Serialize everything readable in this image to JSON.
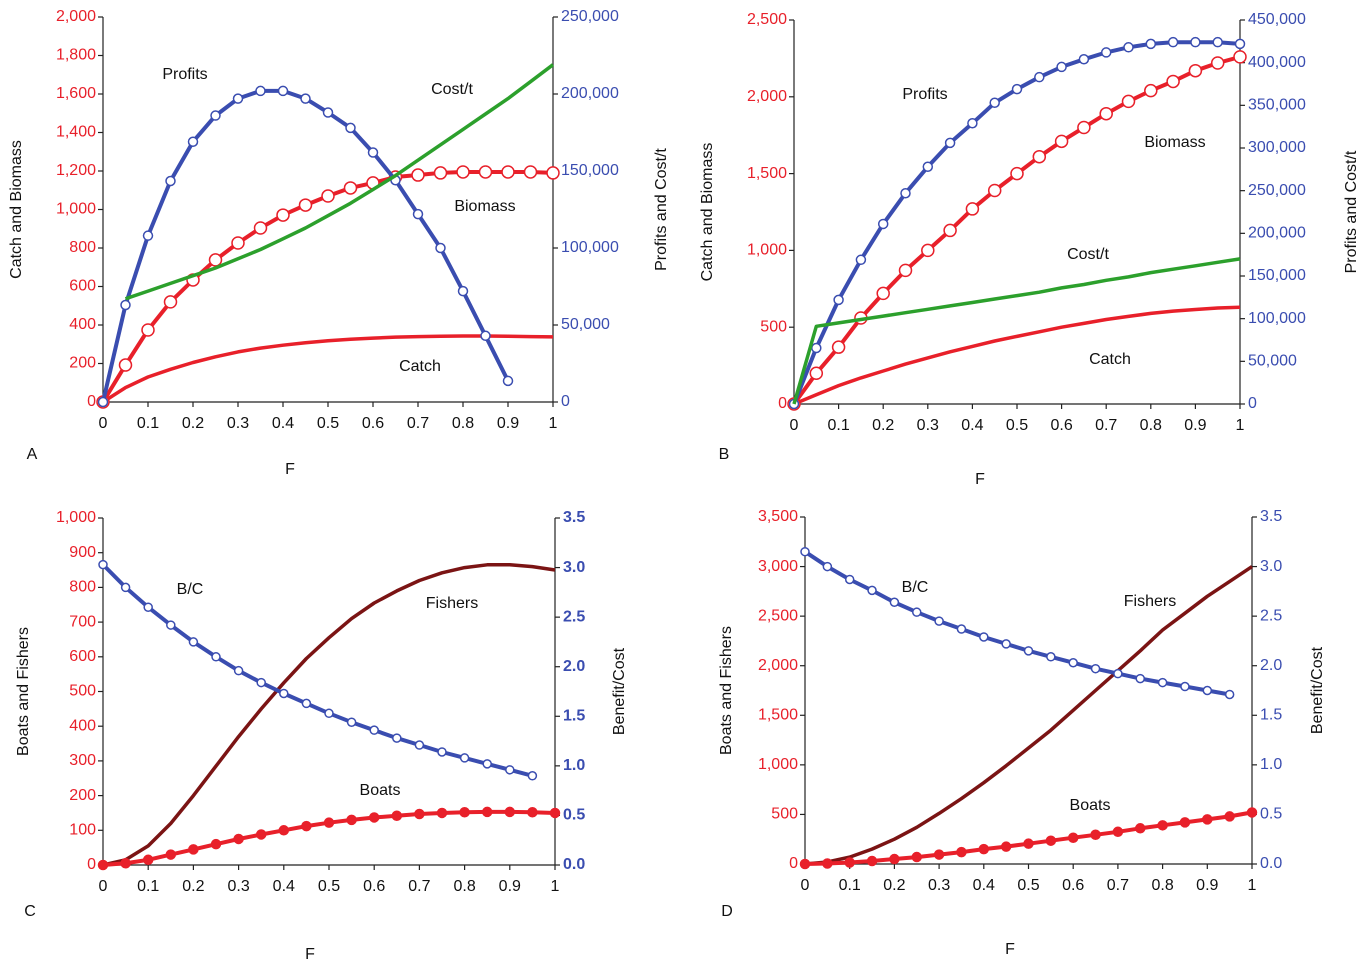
{
  "chart_data": [
    {
      "type": "line",
      "panel_label": "A",
      "x_label": "F",
      "y_label": "Catch and Biomass",
      "y2_label": "Profits and Cost/t",
      "x": [
        0,
        0.05,
        0.1,
        0.15,
        0.2,
        0.25,
        0.3,
        0.35,
        0.4,
        0.45,
        0.5,
        0.55,
        0.6,
        0.65,
        0.7,
        0.75,
        0.8,
        0.85,
        0.9,
        0.95,
        1
      ],
      "xlim": [
        0,
        1
      ],
      "xticks": [
        0,
        0.1,
        0.2,
        0.3,
        0.4,
        0.5,
        0.6,
        0.7,
        0.8,
        0.9,
        1
      ],
      "ylim": [
        0,
        2000
      ],
      "yticks": [
        0,
        200,
        400,
        600,
        800,
        {
          "value": 1000,
          "label": "1,000"
        },
        {
          "value": 1200,
          "label": "1,200"
        },
        {
          "value": 1400,
          "label": "1,400"
        },
        {
          "value": 1600,
          "label": "1,600"
        },
        {
          "value": 1800,
          "label": "1,800"
        },
        {
          "value": 2000,
          "label": "2,000"
        }
      ],
      "y2lim": [
        0,
        250000
      ],
      "y2ticks": [
        0,
        {
          "value": 50000,
          "label": "50,000"
        },
        {
          "value": 100000,
          "label": "100,000"
        },
        {
          "value": 150000,
          "label": "150,000"
        },
        {
          "value": 200000,
          "label": "200,000"
        },
        {
          "value": 250000,
          "label": "250,000"
        }
      ],
      "series": [
        {
          "name": "Catch",
          "color": "#e8202a",
          "marker": "none",
          "values": [
            0,
            75,
            130,
            170,
            205,
            235,
            260,
            280,
            295,
            308,
            318,
            326,
            332,
            337,
            340,
            342,
            343,
            343,
            342,
            340,
            338
          ]
        },
        {
          "name": "Biomass",
          "color": "#e8202a",
          "marker": "open",
          "values": [
            0,
            192,
            374,
            520,
            634,
            738,
            826,
            904,
            971,
            1023,
            1070,
            1112,
            1138,
            1169,
            1179,
            1190,
            1195,
            1195,
            1195,
            1195,
            1190
          ]
        },
        {
          "name": "Profits",
          "color": "#3a4db0",
          "marker": "open",
          "axis": "y2",
          "values": [
            0,
            63000,
            108000,
            143500,
            169000,
            186000,
            197000,
            202000,
            202000,
            197000,
            188000,
            178000,
            162000,
            144000,
            122000,
            100000,
            72000,
            43000,
            13700,
            null,
            null
          ]
        },
        {
          "name": "Cost/t",
          "color": "#2ca02c",
          "marker": "none",
          "axis": "y2",
          "values": [
            null,
            67000,
            72000,
            77000,
            82000,
            87000,
            93000,
            99000,
            106000,
            113000,
            121000,
            129000,
            138000,
            147000,
            157000,
            167000,
            177000,
            187000,
            197000,
            208000,
            219000
          ]
        }
      ]
    },
    {
      "type": "line",
      "panel_label": "B",
      "x_label": "F",
      "y_label": "Catch and Biomass",
      "y2_label": "Profits and Cost/t",
      "x": [
        0,
        0.05,
        0.1,
        0.15,
        0.2,
        0.25,
        0.3,
        0.35,
        0.4,
        0.45,
        0.5,
        0.55,
        0.6,
        0.65,
        0.7,
        0.75,
        0.8,
        0.85,
        0.9,
        0.95,
        1
      ],
      "xlim": [
        0,
        1
      ],
      "xticks": [
        0,
        0.1,
        0.2,
        0.3,
        0.4,
        0.5,
        0.6,
        0.7,
        0.8,
        0.9,
        1
      ],
      "ylim": [
        0,
        2500
      ],
      "yticks": [
        0,
        500,
        {
          "value": 1000,
          "label": "1,000"
        },
        {
          "value": 1500,
          "label": "1,500"
        },
        {
          "value": 2000,
          "label": "2,000"
        },
        {
          "value": 2500,
          "label": "2,500"
        }
      ],
      "y2lim": [
        0,
        450000
      ],
      "y2ticks": [
        0,
        {
          "value": 50000,
          "label": "50,000"
        },
        {
          "value": 100000,
          "label": "100,000"
        },
        {
          "value": 150000,
          "label": "150,000"
        },
        {
          "value": 200000,
          "label": "200,000"
        },
        {
          "value": 250000,
          "label": "250,000"
        },
        {
          "value": 300000,
          "label": "300,000"
        },
        {
          "value": 350000,
          "label": "350,000"
        },
        {
          "value": 400000,
          "label": "400,000"
        },
        {
          "value": 450000,
          "label": "450,000"
        }
      ],
      "series": [
        {
          "name": "Catch",
          "color": "#e8202a",
          "marker": "none",
          "values": [
            0,
            60,
            120,
            170,
            215,
            260,
            300,
            340,
            375,
            410,
            440,
            470,
            500,
            525,
            550,
            570,
            590,
            605,
            615,
            625,
            630
          ]
        },
        {
          "name": "Biomass",
          "color": "#e8202a",
          "marker": "open",
          "values": [
            0,
            200,
            370,
            560,
            720,
            870,
            1000,
            1130,
            1270,
            1390,
            1500,
            1610,
            1710,
            1800,
            1890,
            1970,
            2040,
            2100,
            2170,
            2220,
            2260
          ]
        },
        {
          "name": "Profits",
          "color": "#3a4db0",
          "marker": "open",
          "axis": "y2",
          "values": [
            0,
            65600,
            122000,
            169000,
            211000,
            247000,
            278000,
            306000,
            329000,
            353000,
            369000,
            383000,
            395000,
            404000,
            412000,
            418000,
            422000,
            424000,
            424000,
            424000,
            422000
          ]
        },
        {
          "name": "Cost/t",
          "color": "#2ca02c",
          "marker": "none",
          "axis": "y2",
          "values": [
            0,
            91000,
            95000,
            99000,
            103000,
            107000,
            111000,
            115000,
            119000,
            123000,
            127000,
            131000,
            136000,
            140000,
            145000,
            149000,
            154000,
            158000,
            162000,
            166000,
            170000
          ]
        }
      ]
    },
    {
      "type": "line",
      "panel_label": "C",
      "x_label": "F",
      "y_label": "Boats and Fishers",
      "y2_label": "Benefit/Cost",
      "x": [
        0,
        0.05,
        0.1,
        0.15,
        0.2,
        0.25,
        0.3,
        0.35,
        0.4,
        0.45,
        0.5,
        0.55,
        0.6,
        0.65,
        0.7,
        0.75,
        0.8,
        0.85,
        0.9,
        0.95,
        1
      ],
      "xlim": [
        0,
        1
      ],
      "xticks": [
        0,
        0.1,
        0.2,
        0.3,
        0.4,
        0.5,
        0.6,
        0.7,
        0.8,
        0.9,
        1
      ],
      "ylim": [
        0,
        1000
      ],
      "yticks": [
        0,
        100,
        200,
        300,
        400,
        500,
        600,
        700,
        800,
        900,
        {
          "value": 1000,
          "label": "1,000"
        }
      ],
      "y2lim": [
        0,
        3.5
      ],
      "y2ticks": [
        {
          "value": 0,
          "label": "0.0"
        },
        0.5,
        {
          "value": 1,
          "label": "1.0"
        },
        1.5,
        {
          "value": 2,
          "label": "2.0"
        },
        2.5,
        {
          "value": 3,
          "label": "3.0"
        },
        3.5
      ],
      "series": [
        {
          "name": "Fishers",
          "color": "#7b1414",
          "marker": "none",
          "values": [
            0,
            15,
            55,
            120,
            200,
            285,
            370,
            450,
            525,
            595,
            655,
            710,
            755,
            790,
            820,
            842,
            857,
            865,
            865,
            860,
            850
          ]
        },
        {
          "name": "Boats",
          "color": "#e8202a",
          "marker": "filled",
          "values": [
            0,
            5,
            15,
            30,
            45,
            60,
            75,
            88,
            100,
            112,
            122,
            130,
            137,
            142,
            147,
            150,
            152,
            153,
            153,
            152,
            150
          ]
        },
        {
          "name": "B/C",
          "color": "#3a4db0",
          "marker": "open",
          "axis": "y2",
          "values": [
            3.03,
            2.8,
            2.6,
            2.42,
            2.25,
            2.1,
            1.96,
            1.84,
            1.73,
            1.63,
            1.53,
            1.44,
            1.36,
            1.28,
            1.21,
            1.14,
            1.08,
            1.02,
            0.96,
            0.9,
            null
          ]
        }
      ]
    },
    {
      "type": "line",
      "panel_label": "D",
      "x_label": "F",
      "y_label": "Boats and Fishers",
      "y2_label": "Benefit/Cost",
      "x": [
        0,
        0.05,
        0.1,
        0.15,
        0.2,
        0.25,
        0.3,
        0.35,
        0.4,
        0.45,
        0.5,
        0.55,
        0.6,
        0.65,
        0.7,
        0.75,
        0.8,
        0.85,
        0.9,
        0.95,
        1
      ],
      "xlim": [
        0,
        1
      ],
      "xticks": [
        0,
        0.1,
        0.2,
        0.3,
        0.4,
        0.5,
        0.6,
        0.7,
        0.8,
        0.9,
        1
      ],
      "ylim": [
        0,
        3500
      ],
      "yticks": [
        0,
        500,
        {
          "value": 1000,
          "label": "1,000"
        },
        {
          "value": 1500,
          "label": "1,500"
        },
        {
          "value": 2000,
          "label": "2,000"
        },
        {
          "value": 2500,
          "label": "2,500"
        },
        {
          "value": 3000,
          "label": "3,000"
        },
        {
          "value": 3500,
          "label": "3,500"
        }
      ],
      "y2lim": [
        0,
        3.5
      ],
      "y2ticks": [
        {
          "value": 0,
          "label": "0.0"
        },
        0.5,
        {
          "value": 1,
          "label": "1.0"
        },
        1.5,
        {
          "value": 2,
          "label": "2.0"
        },
        2.5,
        {
          "value": 3,
          "label": "3.0"
        },
        3.5
      ],
      "series": [
        {
          "name": "Fishers",
          "color": "#7b1414",
          "marker": "none",
          "values": [
            0,
            20,
            70,
            150,
            250,
            370,
            510,
            660,
            820,
            990,
            1170,
            1350,
            1550,
            1750,
            1950,
            2150,
            2360,
            2530,
            2700,
            2850,
            3000
          ]
        },
        {
          "name": "Boats",
          "color": "#e8202a",
          "marker": "filled",
          "values": [
            0,
            5,
            15,
            30,
            50,
            70,
            95,
            120,
            150,
            175,
            205,
            235,
            265,
            295,
            325,
            360,
            390,
            420,
            450,
            480,
            520
          ]
        },
        {
          "name": "B/C",
          "color": "#3a4db0",
          "marker": "open",
          "axis": "y2",
          "values": [
            3.15,
            3.0,
            2.87,
            2.76,
            2.64,
            2.54,
            2.45,
            2.37,
            2.29,
            2.22,
            2.15,
            2.09,
            2.03,
            1.97,
            1.92,
            1.87,
            1.83,
            1.79,
            1.75,
            1.71,
            null
          ]
        }
      ]
    }
  ]
}
